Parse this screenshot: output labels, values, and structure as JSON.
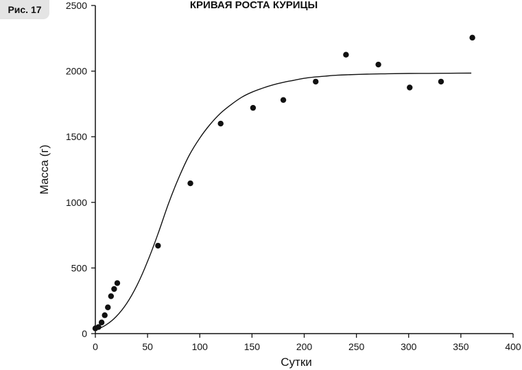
{
  "figure_label": "Рис. 17",
  "chart_data": {
    "type": "scatter",
    "title": "КРИВАЯ РОСТА КУРИЦЫ",
    "xlabel": "Сутки",
    "ylabel": "Масса (г)",
    "xlim": [
      0,
      400
    ],
    "ylim": [
      0,
      2500
    ],
    "xticks": [
      0,
      50,
      100,
      150,
      200,
      250,
      300,
      350,
      400
    ],
    "yticks": [
      0,
      500,
      1000,
      1500,
      2000,
      2500
    ],
    "grid": false,
    "series": [
      {
        "kind": "points",
        "x": [
          0,
          3,
          6,
          9,
          12,
          15,
          18,
          21,
          60,
          91,
          120,
          151,
          180,
          211,
          240,
          271,
          301,
          331,
          361
        ],
        "y": [
          40,
          50,
          85,
          140,
          200,
          285,
          340,
          385,
          670,
          1145,
          1600,
          1720,
          1780,
          1920,
          2125,
          2050,
          1875,
          1920,
          2255
        ]
      },
      {
        "kind": "fitted-curve",
        "x": [
          0,
          10,
          20,
          30,
          40,
          50,
          60,
          70,
          80,
          90,
          100,
          110,
          120,
          130,
          140,
          150,
          160,
          170,
          180,
          190,
          200,
          210,
          220,
          230,
          240,
          260,
          280,
          300,
          320,
          340,
          360
        ],
        "y": [
          25,
          65,
          130,
          230,
          370,
          550,
          760,
          990,
          1190,
          1360,
          1490,
          1595,
          1680,
          1745,
          1800,
          1840,
          1870,
          1895,
          1915,
          1930,
          1945,
          1955,
          1962,
          1968,
          1972,
          1977,
          1980,
          1982,
          1983,
          1984,
          1985
        ]
      }
    ]
  }
}
